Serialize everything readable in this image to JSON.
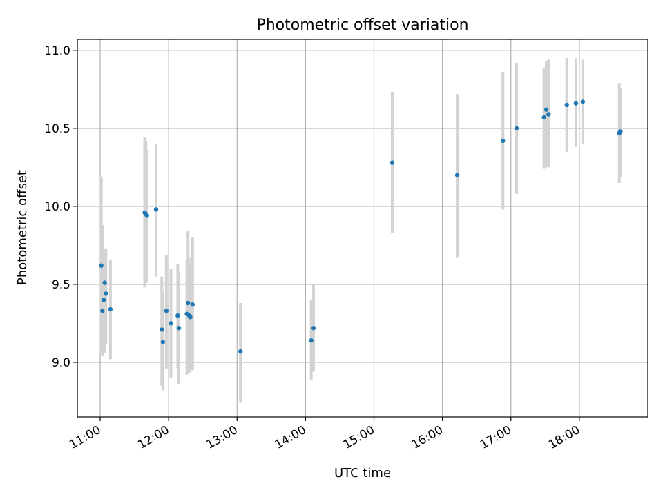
{
  "chart_data": {
    "type": "scatter",
    "title": "Photometric offset variation",
    "xlabel": "UTC time",
    "ylabel": "Photometric offset",
    "x_ticks": [
      "11:00",
      "12:00",
      "13:00",
      "14:00",
      "15:00",
      "16:00",
      "17:00",
      "18:00"
    ],
    "y_ticks": [
      "9.0",
      "9.5",
      "10.0",
      "10.5",
      "11.0"
    ],
    "xlim": [
      "10:40",
      "19:00"
    ],
    "ylim": [
      8.65,
      11.07
    ],
    "grid": true,
    "colors": {
      "points": "#1f77b4",
      "error_bars": "#d3d3d3",
      "grid": "#b0b0b0"
    },
    "points": [
      {
        "t": "11:01",
        "y": 9.62,
        "lo": 9.06,
        "hi": 10.19
      },
      {
        "t": "11:02",
        "y": 9.33,
        "lo": 9.04,
        "hi": 9.88
      },
      {
        "t": "11:03",
        "y": 9.4,
        "lo": 9.08,
        "hi": 9.72
      },
      {
        "t": "11:04",
        "y": 9.51,
        "lo": 9.06,
        "hi": 9.73
      },
      {
        "t": "11:05",
        "y": 9.44,
        "lo": 9.12,
        "hi": 9.73
      },
      {
        "t": "11:09",
        "y": 9.34,
        "lo": 9.02,
        "hi": 9.66
      },
      {
        "t": "11:39",
        "y": 9.96,
        "lo": 9.48,
        "hi": 10.44
      },
      {
        "t": "11:40",
        "y": 9.95,
        "lo": 9.52,
        "hi": 10.42
      },
      {
        "t": "11:41",
        "y": 9.94,
        "lo": 9.51,
        "hi": 10.36
      },
      {
        "t": "11:49",
        "y": 9.98,
        "lo": 9.55,
        "hi": 10.4
      },
      {
        "t": "11:54",
        "y": 9.21,
        "lo": 8.85,
        "hi": 9.55
      },
      {
        "t": "11:55",
        "y": 9.13,
        "lo": 8.82,
        "hi": 9.46
      },
      {
        "t": "11:58",
        "y": 9.33,
        "lo": 8.96,
        "hi": 9.69
      },
      {
        "t": "12:02",
        "y": 9.25,
        "lo": 8.9,
        "hi": 9.6
      },
      {
        "t": "12:08",
        "y": 9.3,
        "lo": 8.96,
        "hi": 9.63
      },
      {
        "t": "12:09",
        "y": 9.22,
        "lo": 8.86,
        "hi": 9.58
      },
      {
        "t": "12:16",
        "y": 9.31,
        "lo": 8.92,
        "hi": 9.66
      },
      {
        "t": "12:17",
        "y": 9.38,
        "lo": 8.93,
        "hi": 9.84
      },
      {
        "t": "12:18",
        "y": 9.3,
        "lo": 8.93,
        "hi": 9.67
      },
      {
        "t": "12:19",
        "y": 9.29,
        "lo": 8.95,
        "hi": 9.63
      },
      {
        "t": "12:21",
        "y": 9.37,
        "lo": 8.95,
        "hi": 9.8
      },
      {
        "t": "13:03",
        "y": 9.07,
        "lo": 8.74,
        "hi": 9.38
      },
      {
        "t": "14:05",
        "y": 9.14,
        "lo": 8.89,
        "hi": 9.4
      },
      {
        "t": "14:07",
        "y": 9.22,
        "lo": 8.94,
        "hi": 9.5
      },
      {
        "t": "15:16",
        "y": 10.28,
        "lo": 9.83,
        "hi": 10.73
      },
      {
        "t": "16:13",
        "y": 10.2,
        "lo": 9.67,
        "hi": 10.72
      },
      {
        "t": "16:53",
        "y": 10.42,
        "lo": 9.98,
        "hi": 10.86
      },
      {
        "t": "17:05",
        "y": 10.5,
        "lo": 10.08,
        "hi": 10.92
      },
      {
        "t": "17:29",
        "y": 10.57,
        "lo": 10.24,
        "hi": 10.89
      },
      {
        "t": "17:31",
        "y": 10.62,
        "lo": 10.25,
        "hi": 10.93
      },
      {
        "t": "17:33",
        "y": 10.59,
        "lo": 10.25,
        "hi": 10.94
      },
      {
        "t": "17:49",
        "y": 10.65,
        "lo": 10.35,
        "hi": 10.95
      },
      {
        "t": "17:57",
        "y": 10.66,
        "lo": 10.38,
        "hi": 10.95
      },
      {
        "t": "18:03",
        "y": 10.67,
        "lo": 10.4,
        "hi": 10.94
      },
      {
        "t": "18:35",
        "y": 10.47,
        "lo": 10.15,
        "hi": 10.79
      },
      {
        "t": "18:36",
        "y": 10.48,
        "lo": 10.19,
        "hi": 10.76
      }
    ]
  }
}
